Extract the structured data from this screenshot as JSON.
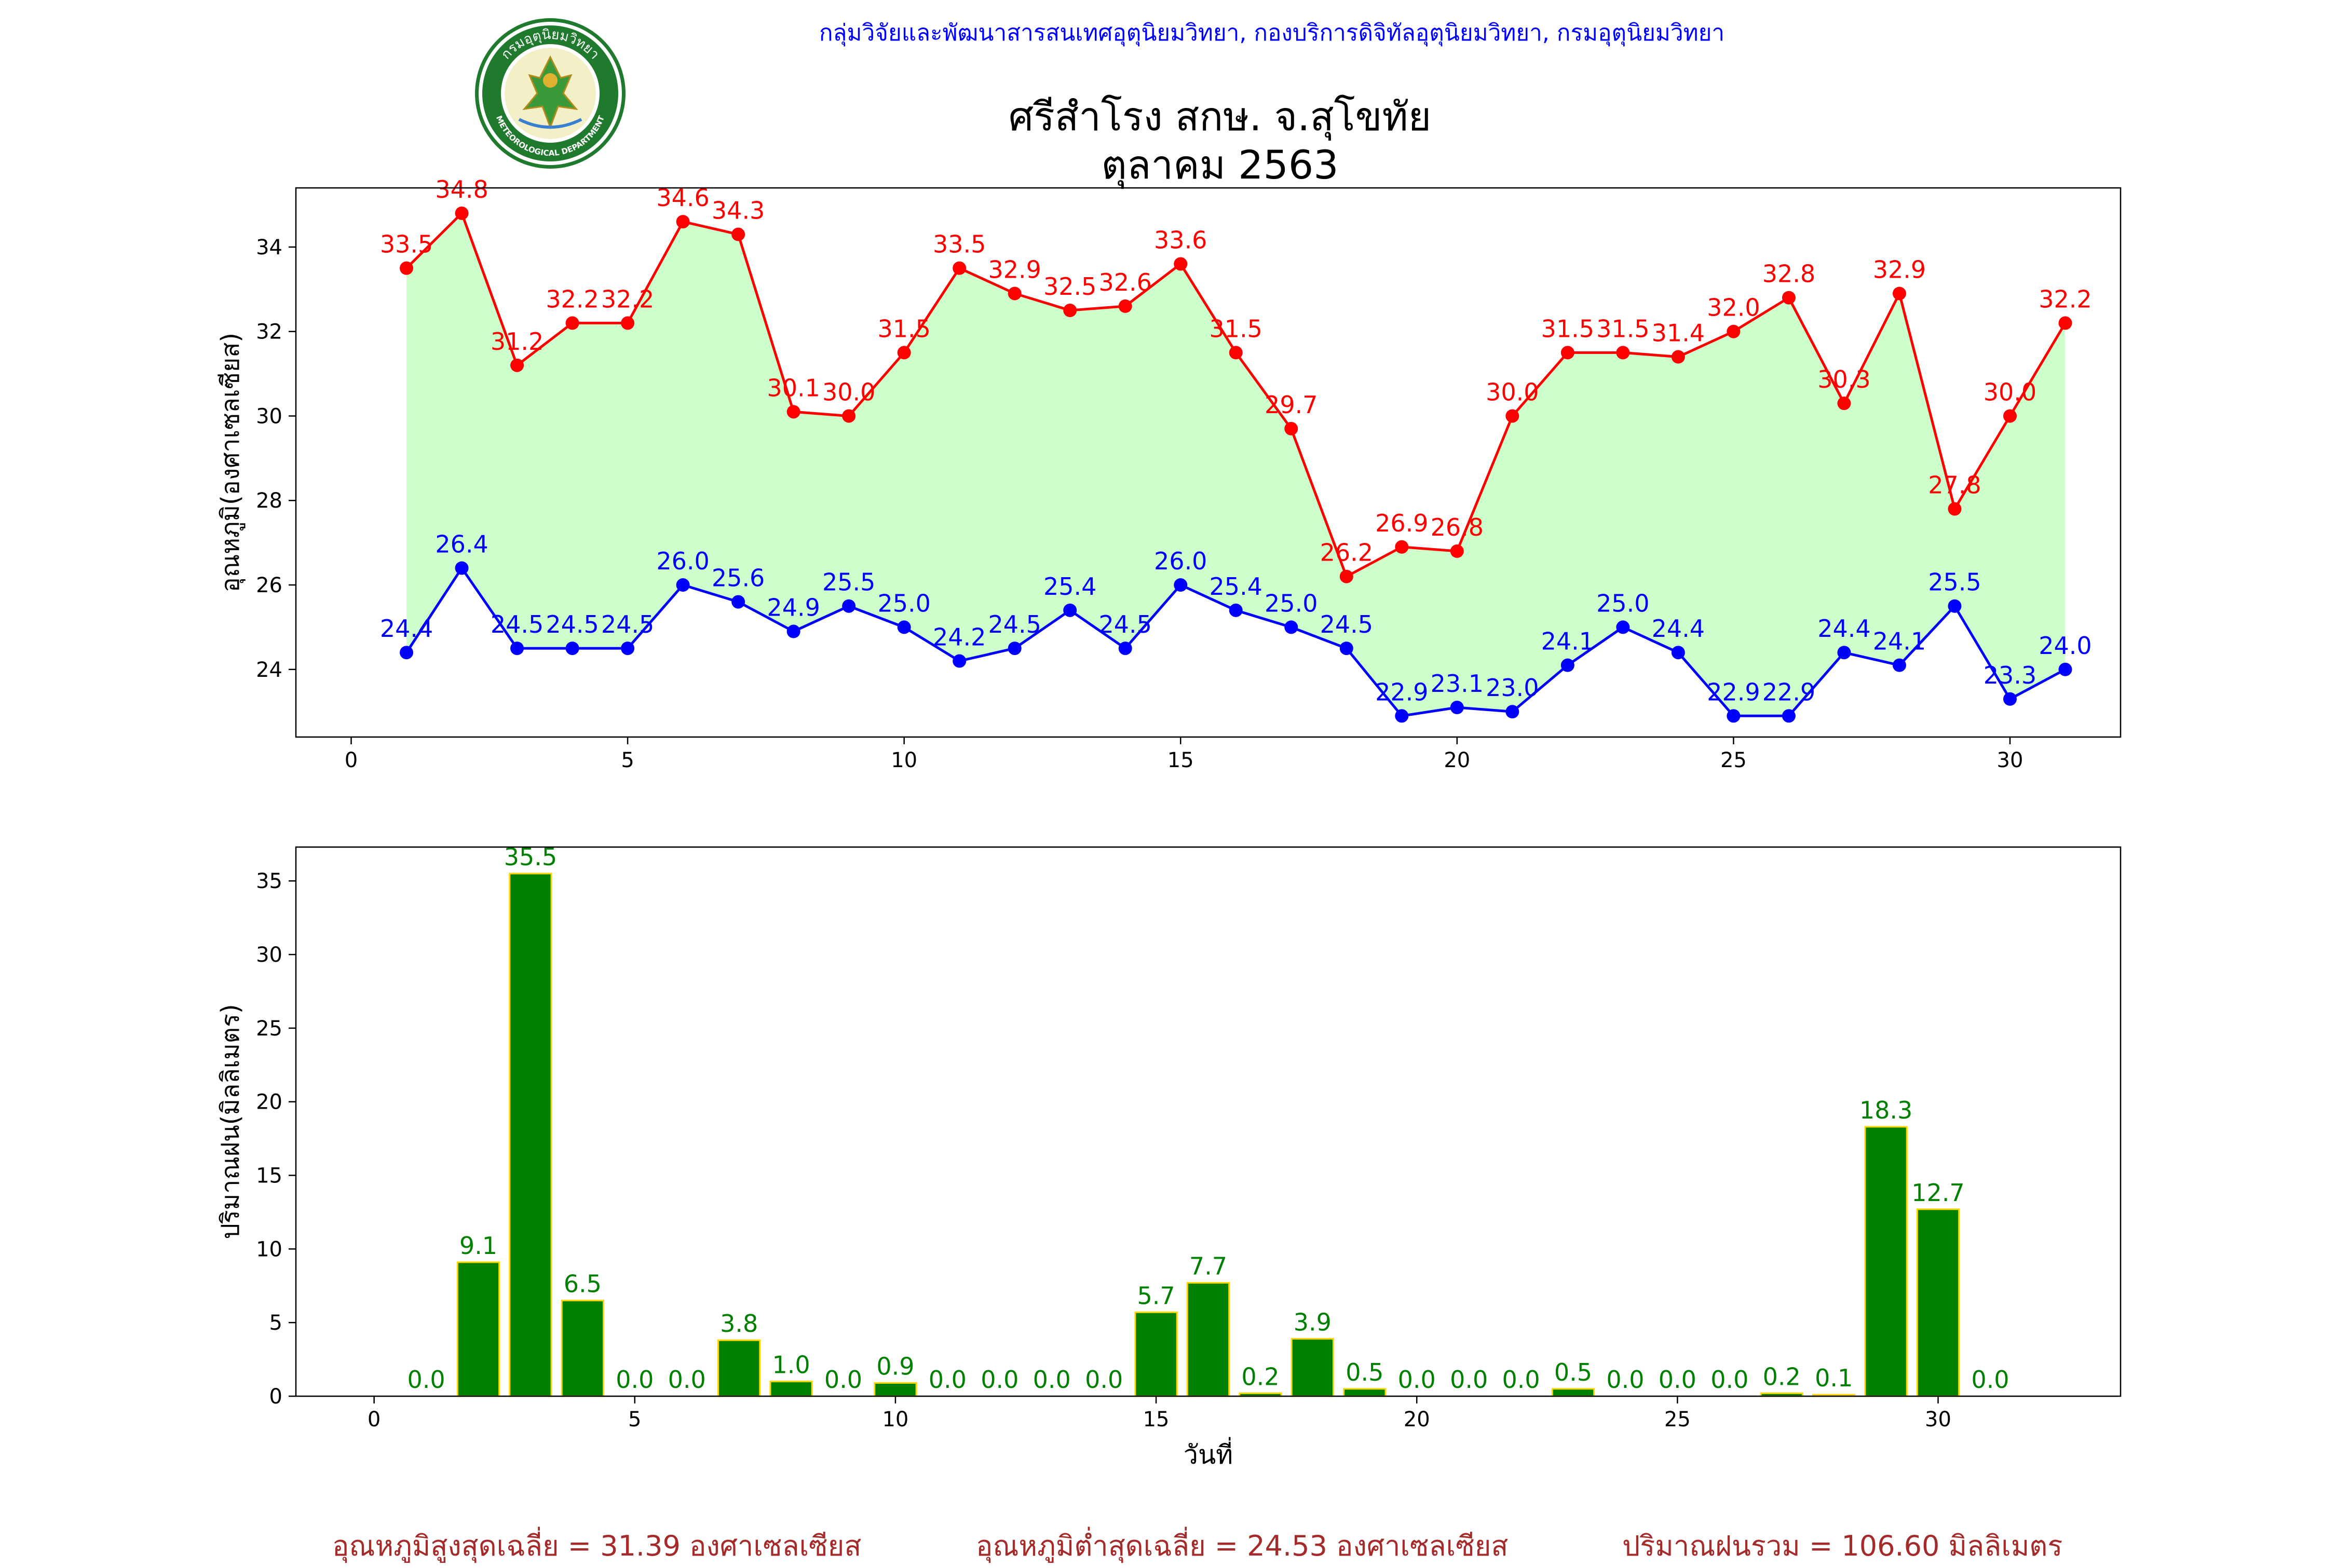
{
  "header": {
    "agency": "กลุ่มวิจัยและพัฒนาสารสนเทศอุตุนิยมวิทยา, กองบริการดิจิทัลอุตุนิยมวิทยา, กรมอุตุนิยมวิทยา",
    "title_line1": "ศรีสำโรง สกษ. จ.สุโขทัย",
    "title_line2": "ตุลาคม 2563",
    "logo_text_top": "กรมอุตุนิยมวิทยา",
    "logo_text_bottom": "METEOROLOGICAL DEPARTMENT"
  },
  "footer": {
    "avg_max": "อุณหภูมิสูงสุดเฉลี่ย = 31.39 องศาเซลเซียส",
    "avg_min": "อุณหภูมิต่ำสุดเฉลี่ย = 24.53 องศาเซลเซียส",
    "rain_total": "ปริมาณฝนรวม = 106.60 มิลลิเมตร"
  },
  "colors": {
    "max_line": "#ff0000",
    "min_line": "#0000ff",
    "fill": "#ccffcc",
    "bar": "#008000",
    "bar_edge": "#ffd700",
    "bar_label": "#008000",
    "footer": "#a52a2a"
  },
  "chart_data": [
    {
      "type": "line",
      "ylabel": "อุณหภูมิ(องศาเซลเซียส)",
      "xlim": [
        -1,
        32
      ],
      "ylim": [
        22.4,
        35.4
      ],
      "xticks": [
        0,
        5,
        10,
        15,
        20,
        25,
        30
      ],
      "yticks": [
        24,
        26,
        28,
        30,
        32,
        34
      ],
      "grid": false,
      "x": [
        1,
        2,
        3,
        4,
        5,
        6,
        7,
        8,
        9,
        10,
        11,
        12,
        13,
        14,
        15,
        16,
        17,
        18,
        19,
        20,
        21,
        22,
        23,
        24,
        25,
        26,
        27,
        28,
        29,
        30,
        31
      ],
      "series": [
        {
          "key": "max",
          "values": [
            33.5,
            34.8,
            31.2,
            32.2,
            32.2,
            34.6,
            34.3,
            30.1,
            30.0,
            31.5,
            33.5,
            32.9,
            32.5,
            32.6,
            33.6,
            31.5,
            29.7,
            26.2,
            26.9,
            26.8,
            30.0,
            31.5,
            31.5,
            31.4,
            32.0,
            32.8,
            30.3,
            32.9,
            27.8,
            30.0,
            32.2
          ]
        },
        {
          "key": "min",
          "values": [
            24.4,
            26.4,
            24.5,
            24.5,
            24.5,
            26.0,
            25.6,
            24.9,
            25.5,
            25.0,
            24.2,
            24.5,
            25.4,
            24.5,
            26.0,
            25.4,
            25.0,
            24.5,
            22.9,
            23.1,
            23.0,
            24.1,
            25.0,
            24.4,
            22.9,
            22.9,
            24.4,
            24.1,
            25.5,
            23.3,
            24.0
          ]
        }
      ]
    },
    {
      "type": "bar",
      "ylabel": "ปริมาณฝน(มิลลิเมตร)",
      "xlabel": "วันที่",
      "xlim": [
        -1.5,
        33.5
      ],
      "ylim": [
        0,
        37.3
      ],
      "xticks": [
        0,
        5,
        10,
        15,
        20,
        25,
        30
      ],
      "yticks": [
        0,
        5,
        10,
        15,
        20,
        25,
        30,
        35
      ],
      "grid": false,
      "x": [
        1,
        2,
        3,
        4,
        5,
        6,
        7,
        8,
        9,
        10,
        11,
        12,
        13,
        14,
        15,
        16,
        17,
        18,
        19,
        20,
        21,
        22,
        23,
        24,
        25,
        26,
        27,
        28,
        29,
        30,
        31
      ],
      "values": [
        0.0,
        9.1,
        35.5,
        6.5,
        0.0,
        0.0,
        3.8,
        1.0,
        0.0,
        0.9,
        0.0,
        0.0,
        0.0,
        0.0,
        5.7,
        7.7,
        0.2,
        3.9,
        0.5,
        0.0,
        0.0,
        0.0,
        0.5,
        0.0,
        0.0,
        0.0,
        0.2,
        0.1,
        18.3,
        12.7,
        0.0
      ]
    }
  ]
}
